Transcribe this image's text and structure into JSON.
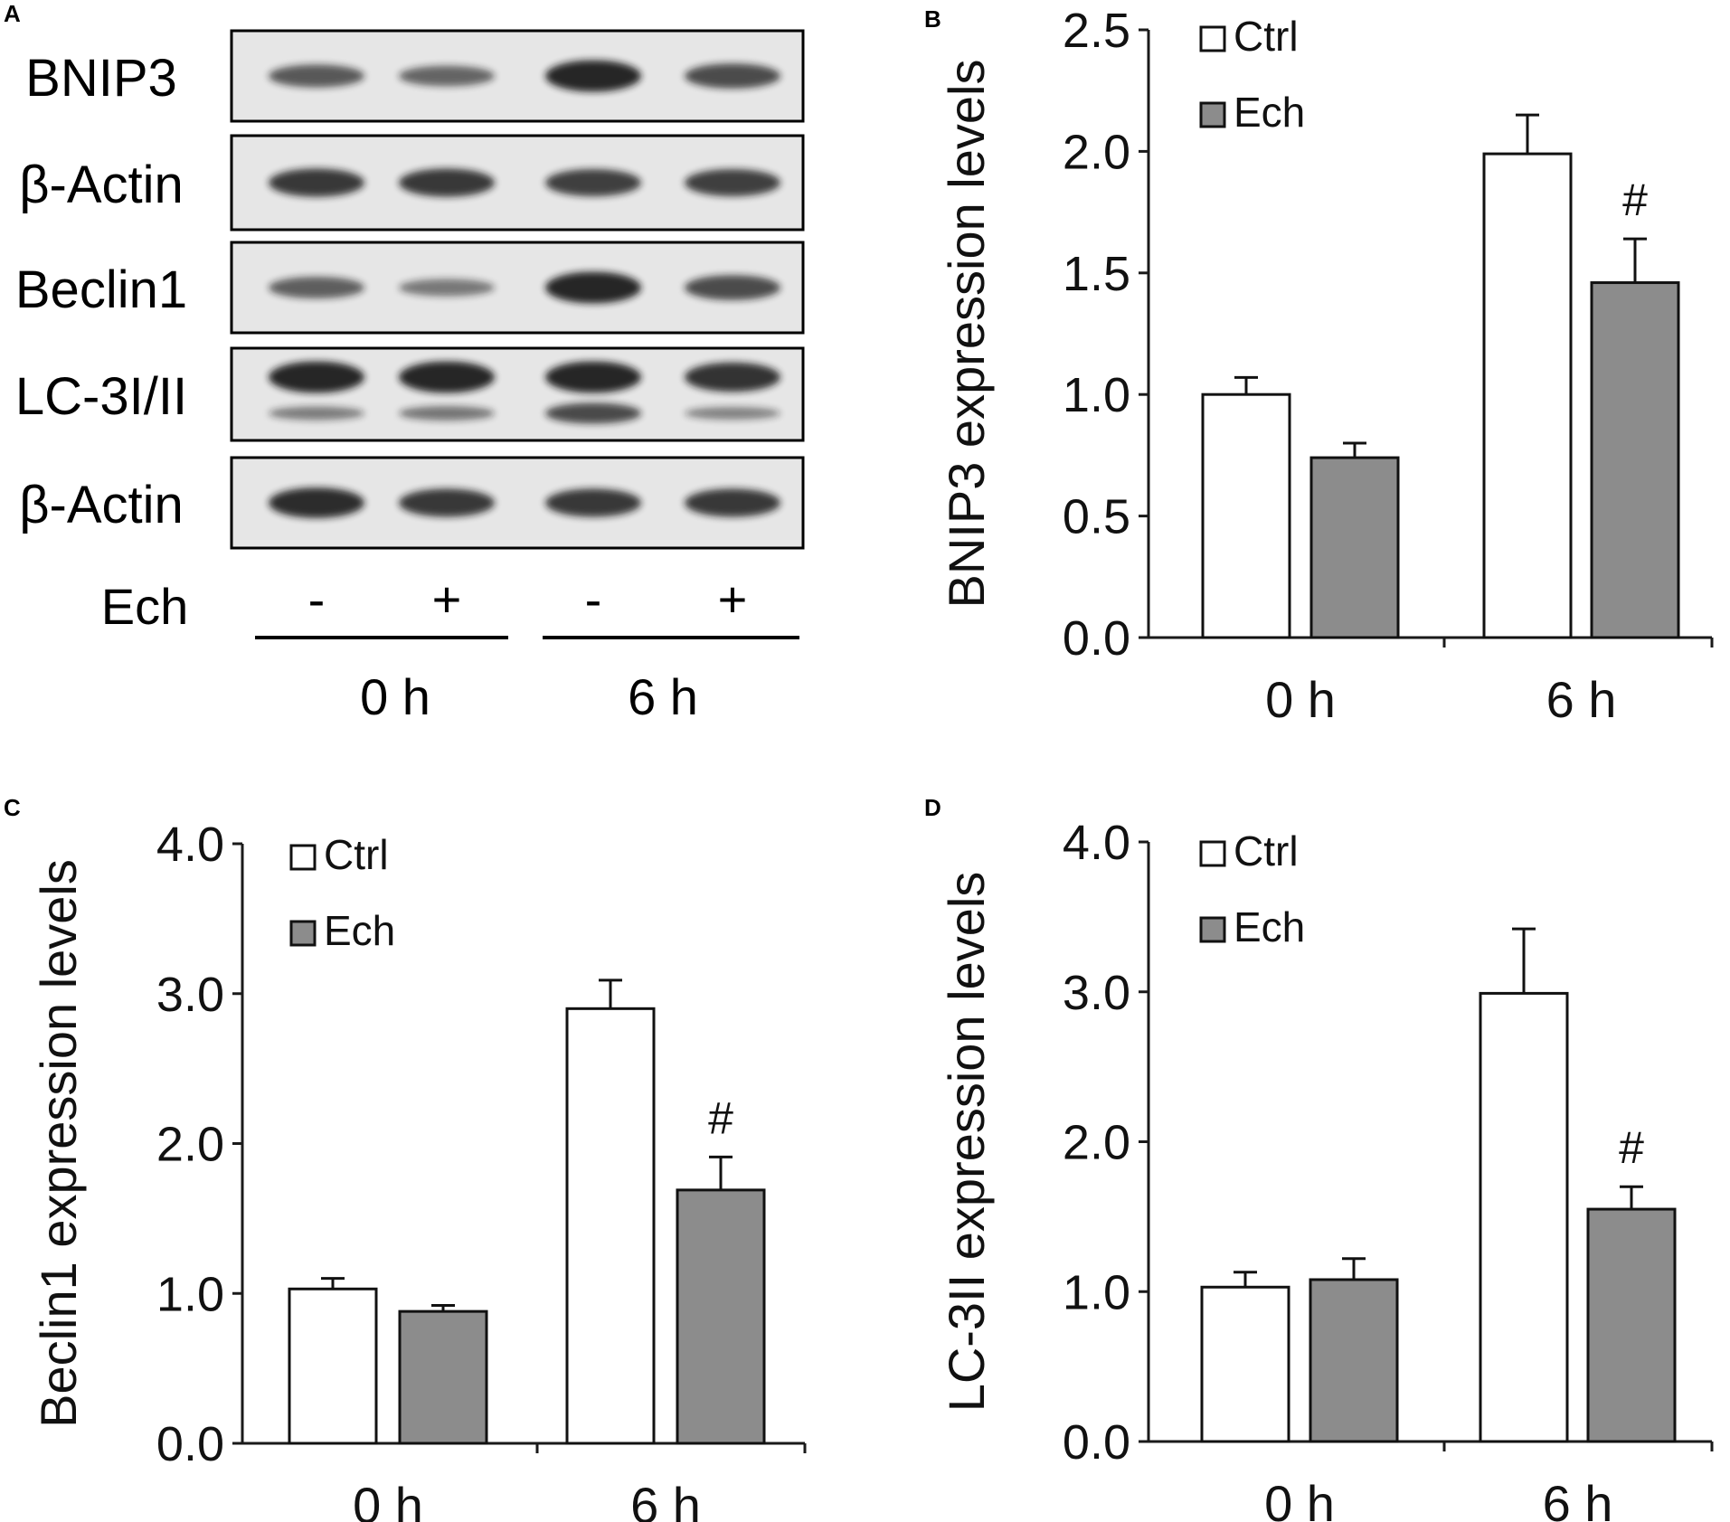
{
  "panel_labels": {
    "a": "A",
    "b": "B",
    "c": "C",
    "d": "D"
  },
  "blot": {
    "rows": [
      {
        "label": "BNIP3",
        "intensities": [
          0.55,
          0.45,
          0.95,
          0.65
        ]
      },
      {
        "label": "β-Actin",
        "intensities": [
          0.8,
          0.8,
          0.75,
          0.75
        ]
      },
      {
        "label": "Beclin1",
        "intensities": [
          0.5,
          0.3,
          0.95,
          0.65
        ]
      },
      {
        "label": "LC-3I/II",
        "intensities": [
          0.95,
          0.95,
          0.95,
          0.85
        ],
        "lower_intensities": [
          0.35,
          0.4,
          0.75,
          0.3
        ]
      },
      {
        "label": "β-Actin",
        "intensities": [
          0.9,
          0.8,
          0.8,
          0.8
        ]
      }
    ],
    "treatment_label": "Ech",
    "treatment_marks": [
      "-",
      "+",
      "-",
      "+"
    ],
    "groups": [
      "0 h",
      "6 h"
    ]
  },
  "colors": {
    "ctrl": "#ffffff",
    "ech": "#8c8c8c",
    "axis": "#1a1a1a",
    "band": "#141414",
    "membrane": "#e6e6e6"
  },
  "chart_data": [
    {
      "panel": "B",
      "type": "bar",
      "categories": [
        "0 h",
        "6 h"
      ],
      "series": [
        {
          "name": "Ctrl",
          "values": [
            1.0,
            1.99
          ],
          "errors": [
            0.07,
            0.16
          ]
        },
        {
          "name": "Ech",
          "values": [
            0.74,
            1.46
          ],
          "errors": [
            0.06,
            0.18
          ]
        }
      ],
      "annotations": [
        {
          "category": "6 h",
          "series": "Ech",
          "text": "#"
        }
      ],
      "ylabel": "BNIP3 expression levels",
      "ylim": [
        0,
        2.5
      ],
      "yticks": [
        "0.0",
        "0.5",
        "1.0",
        "1.5",
        "2.0",
        "2.5"
      ],
      "legend": "top-left",
      "grid": false
    },
    {
      "panel": "C",
      "type": "bar",
      "categories": [
        "0 h",
        "6 h"
      ],
      "series": [
        {
          "name": "Ctrl",
          "values": [
            1.03,
            2.9
          ],
          "errors": [
            0.07,
            0.19
          ]
        },
        {
          "name": "Ech",
          "values": [
            0.88,
            1.69
          ],
          "errors": [
            0.04,
            0.22
          ]
        }
      ],
      "annotations": [
        {
          "category": "6 h",
          "series": "Ech",
          "text": "#"
        }
      ],
      "ylabel": "Beclin1 expression levels",
      "ylim": [
        0,
        4.0
      ],
      "yticks": [
        "0.0",
        "1.0",
        "2.0",
        "3.0",
        "4.0"
      ],
      "legend": "top-left",
      "grid": false
    },
    {
      "panel": "D",
      "type": "bar",
      "categories": [
        "0 h",
        "6 h"
      ],
      "series": [
        {
          "name": "Ctrl",
          "values": [
            1.03,
            2.99
          ],
          "errors": [
            0.1,
            0.43
          ]
        },
        {
          "name": "Ech",
          "values": [
            1.08,
            1.55
          ],
          "errors": [
            0.14,
            0.15
          ]
        }
      ],
      "annotations": [
        {
          "category": "6 h",
          "series": "Ech",
          "text": "#"
        }
      ],
      "ylabel": "LC-3II expression levels",
      "ylim": [
        0,
        4.0
      ],
      "yticks": [
        "0.0",
        "1.0",
        "2.0",
        "3.0",
        "4.0"
      ],
      "legend": "top-left",
      "grid": false
    }
  ]
}
